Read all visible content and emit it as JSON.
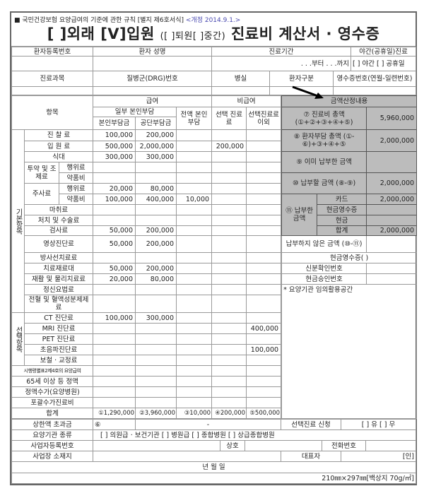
{
  "form_header": {
    "regulation": "■ 국민건강보험 요양급여의 기준에 관한 규칙 [별지 제6호서식]",
    "revision": "<개정 2014.9.1.>",
    "title_outpatient": "[ ]외래",
    "title_inpatient": "[V]입원",
    "title_discharge": "([  ]퇴원[  ]중간)",
    "title_main": "진료비 계산서 · 영수증"
  },
  "patient": {
    "reg_no_label": "환자등록번호",
    "name_label": "환자 성명",
    "period_label": "진료기간",
    "night_label": "야간(공휴일)진료",
    "period_value": ".   .   .부터     .   .   .까지",
    "night_value": "[ ] 야간   [ ] 공휴일",
    "dept_label": "진료과목",
    "drg_label": "질병군(DRG)번호",
    "room_label": "병실",
    "patient_type_label": "환자구분",
    "receipt_no_label": "영수증번호(연월-일련번호)"
  },
  "main": {
    "item_header": "항목",
    "covered": "급여",
    "partial": "일부 본인부담",
    "self_pay": "본인부담금",
    "insurer_pay": "공단부담금",
    "full_self": "전액 본인부담",
    "non_covered": "비급여",
    "selective": "선택 진료료",
    "non_selective": "선택진료료 이외",
    "groups": {
      "basic": "기본항목",
      "optional": "선택항목"
    },
    "items": [
      {
        "group": "basic",
        "label": "진 찰 료",
        "values": [
          "100,000",
          "200,000",
          "",
          "",
          ""
        ]
      },
      {
        "group": "basic",
        "label": "입 원 료",
        "values": [
          "500,000",
          "2,000,000",
          "",
          "200,000",
          ""
        ]
      },
      {
        "group": "basic",
        "label": "식대",
        "values": [
          "300,000",
          "300,000",
          "",
          "",
          ""
        ]
      },
      {
        "group": "basic",
        "parent": "투약 및 조제료",
        "label": "행위료",
        "values": [
          "",
          "",
          "",
          "",
          ""
        ]
      },
      {
        "group": "basic",
        "parent": "투약 및 조제료",
        "label": "약품비",
        "values": [
          "",
          "",
          "",
          "",
          ""
        ]
      },
      {
        "group": "basic",
        "parent": "주사료",
        "label": "행위료",
        "values": [
          "20,000",
          "80,000",
          "",
          "",
          ""
        ]
      },
      {
        "group": "basic",
        "parent": "주사료",
        "label": "약품비",
        "values": [
          "100,000",
          "400,000",
          "10,000",
          "",
          ""
        ]
      },
      {
        "group": "basic",
        "label": "마취료",
        "values": [
          "",
          "",
          "",
          "",
          ""
        ]
      },
      {
        "group": "basic",
        "label": "처치 및 수술료",
        "values": [
          "",
          "",
          "",
          "",
          ""
        ]
      },
      {
        "group": "basic",
        "label": "검사료",
        "values": [
          "50,000",
          "200,000",
          "",
          "",
          ""
        ]
      },
      {
        "group": "basic",
        "label": "영상진단료",
        "values": [
          "50,000",
          "200,000",
          "",
          "",
          ""
        ]
      },
      {
        "group": "basic",
        "label": "방사선치료료",
        "values": [
          "",
          "",
          "",
          "",
          ""
        ]
      },
      {
        "group": "basic",
        "label": "치료재료대",
        "values": [
          "50,000",
          "200,000",
          "",
          "",
          ""
        ]
      },
      {
        "group": "basic",
        "label": "재활 및 물리치료료",
        "values": [
          "20,000",
          "80,000",
          "",
          "",
          ""
        ]
      },
      {
        "group": "basic",
        "label": "정신요법료",
        "values": [
          "",
          "",
          "",
          "",
          ""
        ]
      },
      {
        "group": "basic",
        "label": "전혈 및 혈액성분제제료",
        "values": [
          "",
          "",
          "",
          "",
          ""
        ]
      },
      {
        "group": "optional",
        "label": "CT 진단료",
        "values": [
          "100,000",
          "300,000",
          "",
          "",
          ""
        ]
      },
      {
        "group": "optional",
        "label": "MRI 진단료",
        "values": [
          "",
          "",
          "",
          "",
          "400,000"
        ]
      },
      {
        "group": "optional",
        "label": "PET 진단료",
        "values": [
          "",
          "",
          "",
          "",
          ""
        ]
      },
      {
        "group": "optional",
        "label": "초음파진단료",
        "values": [
          "",
          "",
          "",
          "",
          "100,000"
        ]
      },
      {
        "group": "optional",
        "label": "보철 · 교정료",
        "values": [
          "",
          "",
          "",
          "",
          ""
        ]
      },
      {
        "label": "시행령별표2제4호의 요양급여",
        "values": [
          "",
          "",
          "",
          "",
          ""
        ]
      },
      {
        "label": "65세 이상 등 정액",
        "values": [
          "",
          "",
          "",
          "",
          ""
        ]
      },
      {
        "label": "정액수가(요양병원)",
        "values": [
          "",
          "",
          "",
          "",
          ""
        ]
      },
      {
        "label": "포괄수가진료비",
        "values": [
          "",
          "",
          "",
          "",
          ""
        ]
      },
      {
        "label": "합계",
        "values": [
          "①1,290,000",
          "②3,960,000",
          "③10,000",
          "④200,000",
          "⑤500,000"
        ]
      }
    ]
  },
  "calc": {
    "header": "금액산정내용",
    "total_label": "⑦ 진료비 총액 (①+②+③+④+⑤)",
    "total_value": "5,960,000",
    "patient_total_label": "⑧ 환자부담 총액 (①-⑥)+③+④+⑤",
    "patient_total_value": "2,000,000",
    "paid_label": "⑨ 이미 납부한 금액",
    "paid_value": "",
    "due_label": "⑩ 납부할 금액 (⑧-⑨)",
    "due_value": "2,000,000",
    "paid_amount_label": "⑪ 납부한 금액",
    "card_label": "카드",
    "card_value": "2,000,000",
    "cash_receipt_label": "현금영수증",
    "cash_receipt_value": "",
    "cash_label": "현금",
    "cash_value": "",
    "sum_label": "합계",
    "sum_value": "2,000,000",
    "unpaid_label": "납부하지 않은 금액 (⑩-⑪)",
    "unpaid_value": "",
    "cash_receipt_paren": "현금영수증(        )",
    "id_no_label": "신분확인번호",
    "cash_approval_label": "현금승인번호",
    "free_space": "* 요양기관 임의활용공간"
  },
  "footer": {
    "cap_label": "상한액 초과금",
    "cap_no": "⑥",
    "cap_value": "-",
    "selective_apply_label": "선택진료 신청",
    "selective_apply_value": "[ ] 유     [ ] 무",
    "institution_type_label": "요양기관 종류",
    "institution_types": "[ ] 의원급 · 보건기관      [ ] 병원급      [ ] 종합병원      [ ] 상급종합병원",
    "biz_no_label": "사업자등록번호",
    "company_label": "상호",
    "phone_label": "전화번호",
    "address_label": "사업장 소재지",
    "rep_label": "대표자",
    "seal": "[인]",
    "date": "년                    월                    일",
    "paper_spec": "210㎜×297㎜[백상지 70g/㎡]"
  },
  "colors": {
    "panel_gray": "#bcbcbc",
    "revision_blue": "#4a4ab0"
  }
}
